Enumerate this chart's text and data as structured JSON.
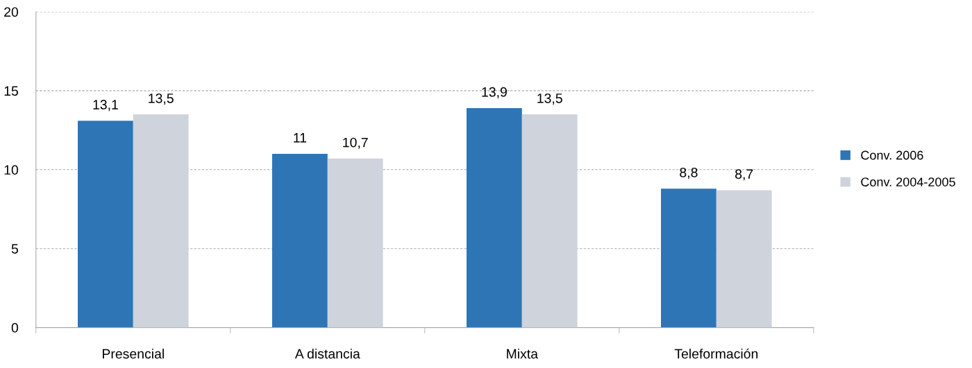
{
  "chart_data": {
    "type": "bar",
    "categories": [
      "Presencial",
      "A distancia",
      "Mixta",
      "Teleformación"
    ],
    "series": [
      {
        "name": "Conv. 2006",
        "color": "#2e75b6",
        "values": [
          13.1,
          11,
          13.9,
          8.8
        ],
        "value_labels": [
          "13,1",
          "11",
          "13,9",
          "8,8"
        ]
      },
      {
        "name": "Conv. 2004-2005",
        "color": "#cfd3db",
        "values": [
          13.5,
          10.7,
          13.5,
          8.7
        ],
        "value_labels": [
          "13,5",
          "10,7",
          "13,5",
          "8,7"
        ]
      }
    ],
    "ylim": [
      0,
      20
    ],
    "yticks": [
      0,
      5,
      10,
      15,
      20
    ],
    "grid": "y",
    "legend": "right"
  }
}
